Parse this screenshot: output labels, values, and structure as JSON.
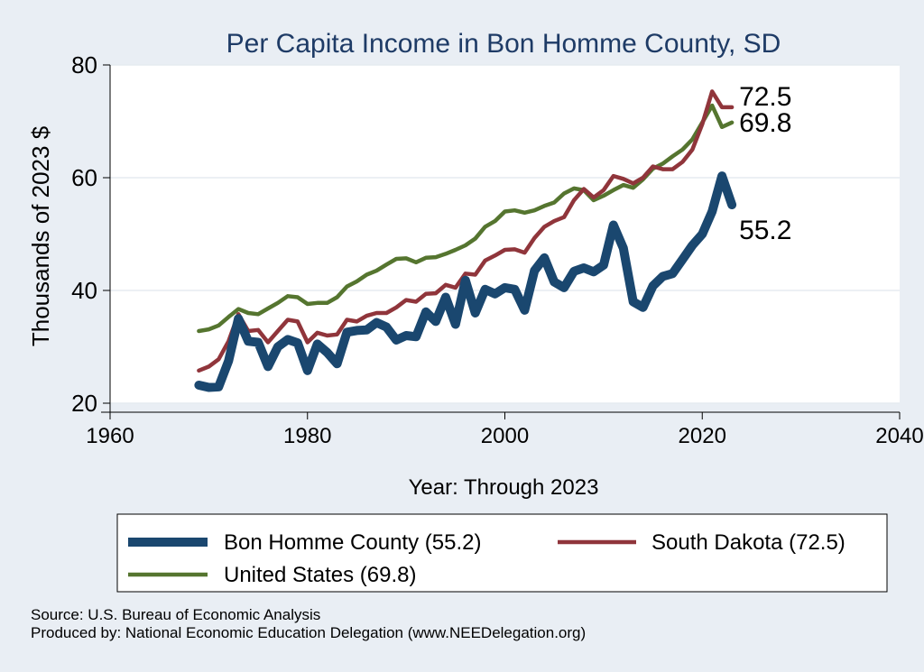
{
  "chart_data": {
    "type": "line",
    "title": "Per Capita Income in Bon Homme County, SD",
    "xlabel": "Year: Through 2023",
    "ylabel": "Thousands of 2023 $",
    "xlim": [
      1960,
      2040
    ],
    "ylim": [
      20,
      80
    ],
    "xticks": [
      1960,
      1980,
      2000,
      2020,
      2040
    ],
    "yticks": [
      20,
      40,
      60,
      80
    ],
    "grid": true,
    "legend_position": "bottom",
    "x": [
      1969,
      1970,
      1971,
      1972,
      1973,
      1974,
      1975,
      1976,
      1977,
      1978,
      1979,
      1980,
      1981,
      1982,
      1983,
      1984,
      1985,
      1986,
      1987,
      1988,
      1989,
      1990,
      1991,
      1992,
      1993,
      1994,
      1995,
      1996,
      1997,
      1998,
      1999,
      2000,
      2001,
      2002,
      2003,
      2004,
      2005,
      2006,
      2007,
      2008,
      2009,
      2010,
      2011,
      2012,
      2013,
      2014,
      2015,
      2016,
      2017,
      2018,
      2019,
      2020,
      2021,
      2022,
      2023
    ],
    "series": [
      {
        "name": "Bon Homme County (55.2)",
        "color": "#1a476f",
        "values": [
          23.2,
          22.8,
          22.9,
          27.5,
          35.0,
          31.0,
          30.8,
          26.5,
          30.0,
          31.3,
          30.7,
          25.8,
          30.5,
          29.0,
          27.0,
          32.6,
          32.9,
          33.0,
          34.3,
          33.5,
          31.2,
          32.0,
          31.8,
          36.2,
          34.5,
          38.8,
          34.0,
          41.8,
          36.0,
          40.2,
          39.4,
          40.5,
          40.2,
          36.5,
          43.5,
          45.8,
          41.5,
          40.5,
          43.4,
          44.0,
          43.3,
          44.5,
          51.6,
          47.5,
          38.0,
          37.0,
          40.8,
          42.5,
          43.0,
          45.5,
          48.0,
          50.0,
          54.0,
          60.3,
          55.2
        ]
      },
      {
        "name": "South Dakota (72.5)",
        "color": "#90353b",
        "values": [
          25.8,
          26.5,
          27.8,
          31.0,
          35.8,
          32.8,
          33.0,
          30.8,
          32.8,
          34.8,
          34.5,
          30.8,
          32.5,
          32.0,
          32.2,
          34.8,
          34.5,
          35.5,
          36.0,
          36.0,
          37.0,
          38.3,
          38.0,
          39.4,
          39.5,
          41.0,
          40.5,
          43.0,
          42.8,
          45.3,
          46.2,
          47.2,
          47.3,
          46.7,
          49.3,
          51.3,
          52.3,
          53.0,
          56.0,
          58.0,
          56.5,
          57.8,
          60.3,
          59.8,
          59.0,
          60.0,
          62.0,
          61.5,
          61.5,
          62.8,
          65.0,
          69.5,
          75.3,
          72.5,
          72.5
        ]
      },
      {
        "name": "United States (69.8)",
        "color": "#55752f",
        "values": [
          32.8,
          33.1,
          33.8,
          35.3,
          36.7,
          36.0,
          35.8,
          36.8,
          37.8,
          39.0,
          38.8,
          37.6,
          37.8,
          37.8,
          38.8,
          40.7,
          41.6,
          42.8,
          43.5,
          44.6,
          45.6,
          45.7,
          45.0,
          45.8,
          45.9,
          46.5,
          47.2,
          48.0,
          49.2,
          51.3,
          52.3,
          54.0,
          54.2,
          53.8,
          54.2,
          55.0,
          55.6,
          57.2,
          58.1,
          57.8,
          56.0,
          56.8,
          57.8,
          58.7,
          58.2,
          59.7,
          61.6,
          62.5,
          63.8,
          65.0,
          66.8,
          69.8,
          72.8,
          69.0,
          69.8
        ]
      }
    ],
    "end_labels": [
      {
        "text": "72.5",
        "value": 72.5
      },
      {
        "text": "69.8",
        "value": 69.8
      },
      {
        "text": "55.2",
        "value": 55.2
      }
    ]
  },
  "source_notes": [
    "Source: U.S. Bureau of Economic Analysis",
    "Produced by: National Economic Education Delegation (www.NEEDelegation.org)"
  ]
}
